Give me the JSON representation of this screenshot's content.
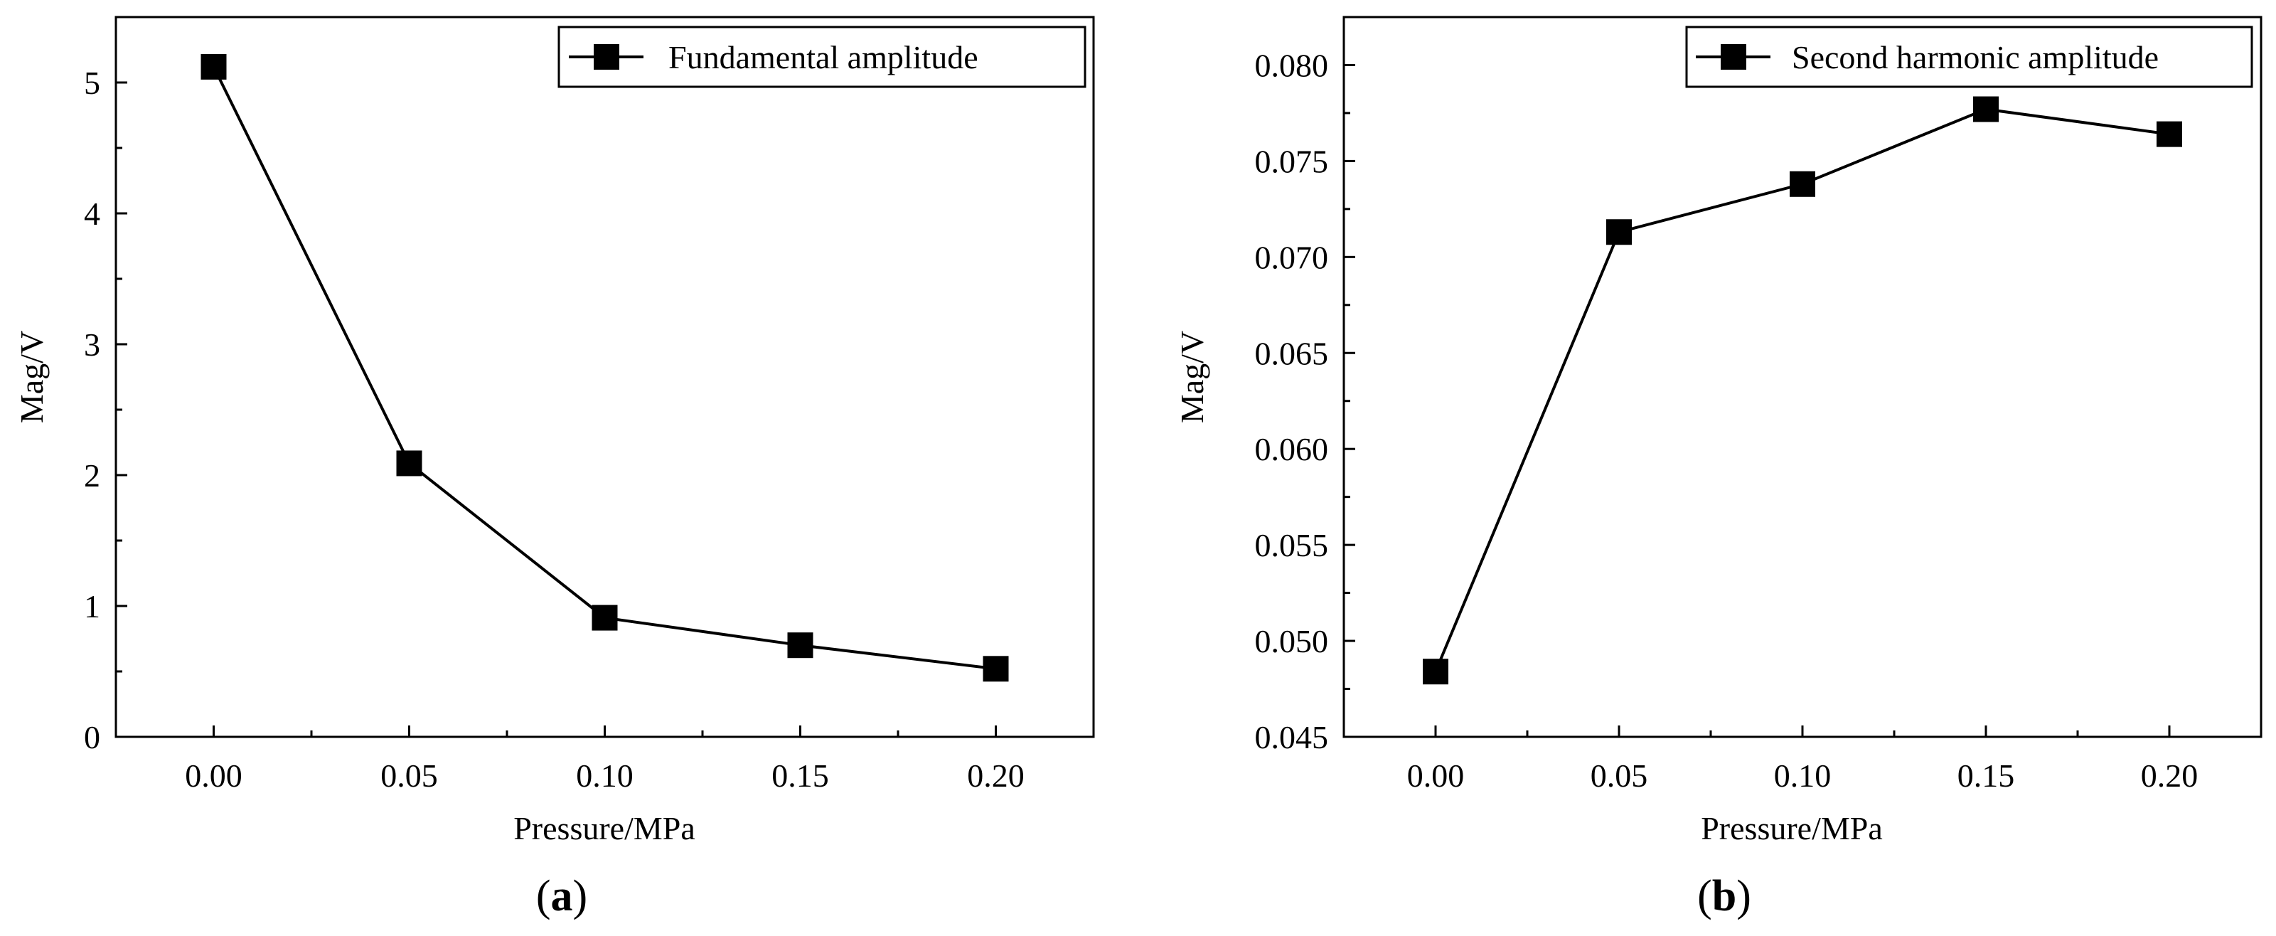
{
  "chart_data": [
    {
      "type": "line",
      "panel_label": "a",
      "title": "",
      "xlabel": "Pressure/MPa",
      "ylabel": "Mag/V",
      "x": [
        0.0,
        0.05,
        0.1,
        0.15,
        0.2
      ],
      "x_tick_labels": [
        "0.00",
        "0.05",
        "0.10",
        "0.15",
        "0.20"
      ],
      "y_tick_labels": [
        "0",
        "1",
        "2",
        "3",
        "4",
        "5"
      ],
      "y_ticks": [
        0,
        1,
        2,
        3,
        4,
        5
      ],
      "xlim": [
        -0.025,
        0.225
      ],
      "ylim": [
        0,
        5.5
      ],
      "grid": false,
      "legend_position": "top-right",
      "series": [
        {
          "name": "Fundamental amplitude",
          "marker": "square",
          "color": "#000000",
          "values": [
            5.12,
            2.09,
            0.91,
            0.7,
            0.52
          ]
        }
      ]
    },
    {
      "type": "line",
      "panel_label": "b",
      "title": "",
      "xlabel": "Pressure/MPa",
      "ylabel": "Mag/V",
      "x": [
        0.0,
        0.05,
        0.1,
        0.15,
        0.2
      ],
      "x_tick_labels": [
        "0.00",
        "0.05",
        "0.10",
        "0.15",
        "0.20"
      ],
      "y_tick_labels": [
        "0.045",
        "0.050",
        "0.055",
        "0.060",
        "0.065",
        "0.070",
        "0.075",
        "0.080"
      ],
      "y_ticks": [
        0.045,
        0.05,
        0.055,
        0.06,
        0.065,
        0.07,
        0.075,
        0.08
      ],
      "xlim": [
        -0.025,
        0.225
      ],
      "ylim": [
        0.045,
        0.0825
      ],
      "grid": false,
      "legend_position": "top-right",
      "series": [
        {
          "name": "Second harmonic amplitude",
          "marker": "square",
          "color": "#000000",
          "values": [
            0.0484,
            0.0713,
            0.0738,
            0.0777,
            0.0764
          ]
        }
      ]
    }
  ]
}
